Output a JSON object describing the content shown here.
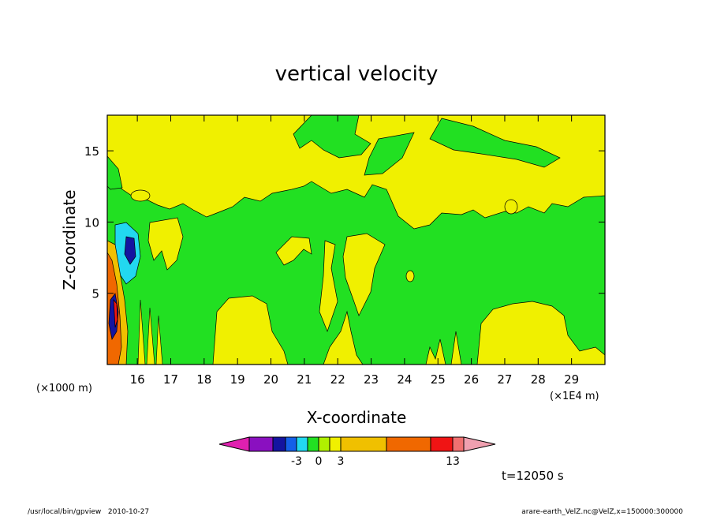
{
  "chart_data": {
    "type": "heatmap",
    "title": "vertical velocity",
    "xlabel": "X-coordinate",
    "ylabel": "Z-coordinate",
    "x_unit_left": "(×1000 m)",
    "x_unit_right": "(×1E4 m)",
    "xlim": [
      15.1,
      30.0
    ],
    "ylim": [
      0,
      17.5
    ],
    "x_ticks": [
      16,
      17,
      18,
      19,
      20,
      21,
      22,
      23,
      24,
      25,
      26,
      27,
      28,
      29
    ],
    "y_ticks": [
      5,
      10,
      15
    ],
    "colorbar": {
      "colors": [
        "#e020b0",
        "#8a10c0",
        "#1414a0",
        "#1460e8",
        "#22d8f0",
        "#22e022",
        "#b0f000",
        "#f0f000",
        "#f0c000",
        "#f06800",
        "#f01414",
        "#f07070",
        "#f0a0b0"
      ],
      "tick_labels": [
        "-3",
        "0",
        "3",
        "13"
      ]
    },
    "time_label": "t=12050 s"
  },
  "footer": {
    "left": "/usr/local/bin/gpview   2010-10-27",
    "right": "arare-earth_VelZ.nc@VelZ,x=150000:300000"
  }
}
